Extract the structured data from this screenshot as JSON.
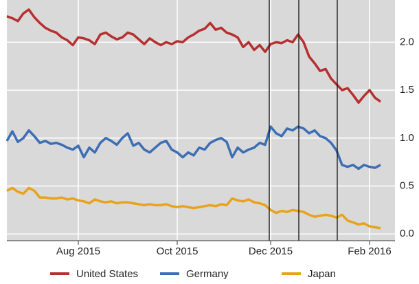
{
  "chart_data": {
    "type": "line",
    "categories": [
      null,
      null,
      null,
      null,
      null,
      null,
      null,
      null,
      null,
      null,
      null,
      null,
      null,
      "Aug 2015",
      null,
      null,
      null,
      null,
      null,
      null,
      null,
      null,
      null,
      null,
      null,
      null,
      null,
      null,
      null,
      null,
      null,
      "Oct 2015",
      null,
      null,
      null,
      null,
      null,
      null,
      null,
      null,
      null,
      null,
      null,
      null,
      null,
      null,
      null,
      null,
      "Dec 2015",
      null,
      null,
      null,
      null,
      null,
      null,
      null,
      null,
      null,
      null,
      null,
      null,
      null,
      null,
      null,
      null,
      null,
      "Feb 2016",
      null,
      null
    ],
    "series": [
      {
        "name": "United States",
        "color": "#b5302f",
        "values": [
          2.27,
          2.25,
          2.22,
          2.3,
          2.34,
          2.26,
          2.2,
          2.15,
          2.12,
          2.1,
          2.05,
          2.02,
          1.97,
          2.05,
          2.04,
          2.02,
          1.98,
          2.08,
          2.1,
          2.06,
          2.03,
          2.05,
          2.1,
          2.08,
          2.03,
          1.98,
          2.04,
          2.0,
          1.97,
          2.0,
          1.98,
          2.01,
          2.0,
          2.05,
          2.08,
          2.12,
          2.14,
          2.2,
          2.13,
          2.15,
          2.1,
          2.08,
          2.05,
          1.95,
          2.0,
          1.92,
          1.97,
          1.9,
          1.98,
          2.0,
          1.99,
          2.02,
          2.0,
          2.08,
          2.0,
          1.85,
          1.78,
          1.7,
          1.72,
          1.62,
          1.56,
          1.5,
          1.52,
          1.45,
          1.37,
          1.44,
          1.5,
          1.42,
          1.38
        ]
      },
      {
        "name": "Germany",
        "color": "#3c6eb4",
        "values": [
          0.97,
          1.07,
          0.96,
          1.0,
          1.08,
          1.02,
          0.95,
          0.97,
          0.94,
          0.95,
          0.93,
          0.9,
          0.88,
          0.92,
          0.8,
          0.9,
          0.85,
          0.95,
          1.0,
          0.97,
          0.93,
          1.0,
          1.05,
          0.92,
          0.95,
          0.88,
          0.85,
          0.9,
          0.95,
          0.97,
          0.88,
          0.85,
          0.8,
          0.85,
          0.82,
          0.9,
          0.88,
          0.95,
          0.98,
          1.0,
          0.96,
          0.8,
          0.9,
          0.85,
          0.88,
          0.9,
          0.95,
          0.93,
          1.12,
          1.05,
          1.02,
          1.1,
          1.08,
          1.12,
          1.1,
          1.05,
          1.08,
          1.02,
          1.0,
          0.95,
          0.87,
          0.72,
          0.7,
          0.72,
          0.68,
          0.72,
          0.7,
          0.69,
          0.72
        ]
      },
      {
        "name": "Japan",
        "color": "#e8a21c",
        "values": [
          0.45,
          0.48,
          0.44,
          0.42,
          0.48,
          0.45,
          0.38,
          0.38,
          0.37,
          0.37,
          0.38,
          0.36,
          0.37,
          0.35,
          0.34,
          0.32,
          0.36,
          0.34,
          0.33,
          0.34,
          0.32,
          0.33,
          0.33,
          0.32,
          0.31,
          0.3,
          0.31,
          0.3,
          0.3,
          0.31,
          0.29,
          0.28,
          0.29,
          0.28,
          0.27,
          0.28,
          0.29,
          0.3,
          0.29,
          0.31,
          0.3,
          0.37,
          0.35,
          0.34,
          0.36,
          0.33,
          0.32,
          0.3,
          0.25,
          0.22,
          0.24,
          0.23,
          0.25,
          0.24,
          0.23,
          0.2,
          0.18,
          0.19,
          0.2,
          0.19,
          0.17,
          0.2,
          0.14,
          0.12,
          0.1,
          0.11,
          0.08,
          0.07,
          0.06
        ]
      }
    ],
    "ylim": [
      -0.07,
      2.44
    ],
    "yticks": [
      {
        "value": 0,
        "label": "0.0"
      },
      0.5,
      {
        "value": 1,
        "label": "1.0"
      },
      1.5,
      {
        "value": 2,
        "label": "2.0"
      }
    ],
    "grid": true
  }
}
